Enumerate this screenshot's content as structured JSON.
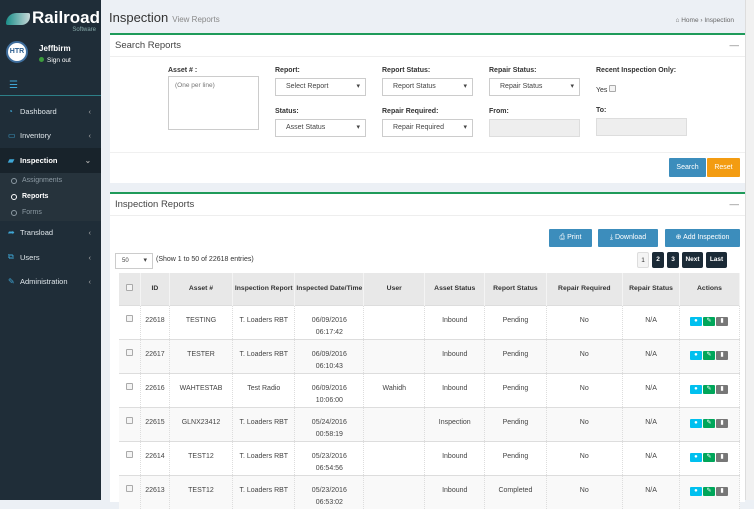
{
  "brand": {
    "name": "Railroad",
    "sub": "Software",
    "avatar": "HTR"
  },
  "user": {
    "name": "Jeffbirm",
    "signout": "Sign out"
  },
  "sidebar": {
    "items": [
      {
        "label": "Dashboard",
        "icon": "dashboard-icon"
      },
      {
        "label": "Inventory",
        "icon": "laptop-icon"
      },
      {
        "label": "Inspection",
        "icon": "book-icon",
        "active": true
      },
      {
        "label": "Transload",
        "icon": "share-icon"
      },
      {
        "label": "Users",
        "icon": "users-icon"
      },
      {
        "label": "Administration",
        "icon": "edit-icon"
      }
    ],
    "sub": [
      "Assignments",
      "Reports",
      "Forms"
    ]
  },
  "header": {
    "title": "Inspection",
    "subtitle": "View Reports",
    "crumb_home": "Home",
    "crumb_current": "Inspection"
  },
  "search": {
    "title": "Search Reports",
    "asset_label": "Asset # :",
    "asset_placeholder": "(One per line)",
    "report_label": "Report:",
    "report_value": "Select Report",
    "report_status_label": "Report Status:",
    "report_status_value": "Report Status",
    "repair_status_label": "Repair Status:",
    "repair_status_value": "Repair Status",
    "recent_label": "Recent Inspection Only:",
    "yes_label": "Yes",
    "status_label": "Status:",
    "status_value": "Asset Status",
    "repair_required_label": "Repair Required:",
    "repair_required_value": "Repair Required",
    "from_label": "From:",
    "to_label": "To:",
    "search_btn": "Search",
    "reset_btn": "Reset"
  },
  "reports": {
    "title": "Inspection Reports",
    "print": "Print",
    "download": "Download",
    "add": "Add Inspection",
    "page_size": "50",
    "entries": "(Show 1 to 50 of 22618 entries)",
    "pages": [
      "1",
      "2",
      "3",
      "Next",
      "Last"
    ],
    "columns": [
      "ID",
      "Asset #",
      "Inspection Report",
      "Inspected Date/Time",
      "User",
      "Asset Status",
      "Report Status",
      "Repair Required",
      "Repair Status",
      "Actions"
    ],
    "rows": [
      {
        "id": "22618",
        "asset": "TESTING",
        "report": "T. Loaders RBT",
        "date": "06/09/2016",
        "time": "06:17:42",
        "user": "",
        "asset_status": "Inbound",
        "report_status": "Pending",
        "repair_required": "No",
        "repair_status": "N/A"
      },
      {
        "id": "22617",
        "asset": "TESTER",
        "report": "T. Loaders RBT",
        "date": "06/09/2016",
        "time": "06:10:43",
        "user": "",
        "asset_status": "Inbound",
        "report_status": "Pending",
        "repair_required": "No",
        "repair_status": "N/A"
      },
      {
        "id": "22616",
        "asset": "WAHTESTAB",
        "report": "Test Radio",
        "date": "06/09/2016",
        "time": "10:06:00",
        "user": "Wahidh",
        "asset_status": "Inbound",
        "report_status": "Pending",
        "repair_required": "No",
        "repair_status": "N/A"
      },
      {
        "id": "22615",
        "asset": "GLNX23412",
        "report": "T. Loaders RBT",
        "date": "05/24/2016",
        "time": "00:58:19",
        "user": "",
        "asset_status": "Inspection",
        "report_status": "Pending",
        "repair_required": "No",
        "repair_status": "N/A"
      },
      {
        "id": "22614",
        "asset": "TEST12",
        "report": "T. Loaders RBT",
        "date": "05/23/2016",
        "time": "06:54:56",
        "user": "",
        "asset_status": "Inbound",
        "report_status": "Pending",
        "repair_required": "No",
        "repair_status": "N/A"
      },
      {
        "id": "22613",
        "asset": "TEST12",
        "report": "T. Loaders RBT",
        "date": "05/23/2016",
        "time": "06:53:02",
        "user": "",
        "asset_status": "Inbound",
        "report_status": "Completed",
        "repair_required": "No",
        "repair_status": "N/A"
      }
    ]
  },
  "colors": {
    "sidebar": "#1f2d38",
    "accent_green": "#1f9b5a",
    "primary": "#3c8dbc",
    "warning": "#f39c12",
    "view": "#00c0ef",
    "edit": "#00a65a",
    "delete": "#777777"
  }
}
